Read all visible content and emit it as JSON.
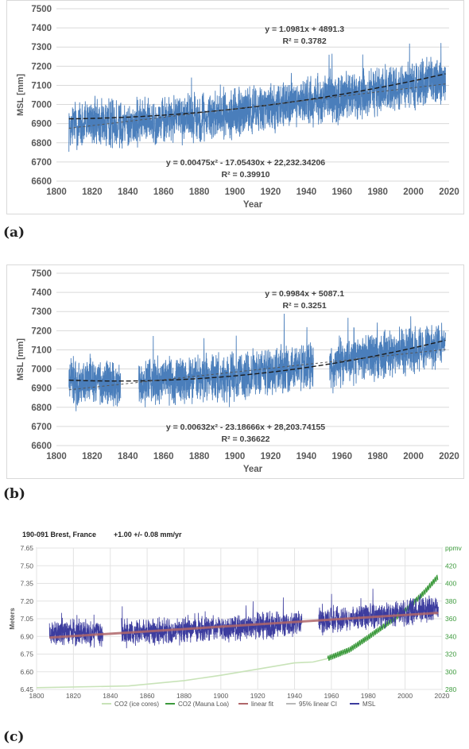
{
  "panels": {
    "a": {
      "label": "(a)"
    },
    "b": {
      "label": "(b)"
    },
    "c": {
      "label": "(c)"
    }
  },
  "colors": {
    "msl_blue": "#4a7ebb",
    "trend": "#1a1a1a",
    "c_msl": "#3c3c9e",
    "c_linear_fit": "#b0676a",
    "c_co2_mauna_loa": "#3c9a3c",
    "c_co2_ice": "#c8e3b8",
    "c_axis_right": "#3c9a3c"
  },
  "chart_data": [
    {
      "type": "line",
      "title": "",
      "xlabel": "Year",
      "ylabel": "MSL [mm]",
      "xlim": [
        1800,
        2020
      ],
      "ylim": [
        6600,
        7500
      ],
      "xticks": [
        "1800",
        "1820",
        "1840",
        "1860",
        "1880",
        "1900",
        "1920",
        "1940",
        "1960",
        "1980",
        "2000",
        "2020"
      ],
      "yticks": [
        "6600",
        "6700",
        "6800",
        "6900",
        "7000",
        "7100",
        "7200",
        "7300",
        "7400",
        "7500"
      ],
      "grid": true,
      "series_range": [
        1807,
        2018
      ],
      "gaps": [],
      "series": [
        {
          "kind": "observed",
          "x": [
            1807,
            1820,
            1840,
            1860,
            1880,
            1900,
            1920,
            1940,
            1960,
            1980,
            2000,
            2018
          ],
          "y": [
            6890,
            6905,
            6900,
            6920,
            6935,
            6955,
            6985,
            7015,
            7040,
            7070,
            7100,
            7130
          ]
        },
        {
          "kind": "quadratic_fit",
          "coefficients": [
            0.00475,
            -17.0543,
            22232.34206
          ]
        },
        {
          "kind": "linear_fit",
          "coefficients": [
            1.0981,
            4891.3
          ]
        }
      ],
      "annotations": {
        "linear_eq": "y = 1.0981x + 4891.3",
        "linear_r2": "R² = 0.3782",
        "quad_eq": "y = 0.00475x² - 17.05430x + 22,232.34206",
        "quad_r2": "R² = 0.39910"
      }
    },
    {
      "type": "line",
      "title": "",
      "xlabel": "Year",
      "ylabel": "MSL [mm]",
      "xlim": [
        1800,
        2020
      ],
      "ylim": [
        6600,
        7500
      ],
      "xticks": [
        "1800",
        "1820",
        "1840",
        "1860",
        "1880",
        "1900",
        "1920",
        "1940",
        "1960",
        "1980",
        "2000",
        "2020"
      ],
      "yticks": [
        "6600",
        "6700",
        "6800",
        "6900",
        "7000",
        "7100",
        "7200",
        "7300",
        "7400",
        "7500"
      ],
      "grid": true,
      "series_range": [
        1807,
        2018
      ],
      "gaps": [
        [
          1836,
          1846
        ],
        [
          1944,
          1953
        ]
      ],
      "series": [
        {
          "kind": "observed",
          "x": [
            1807,
            1820,
            1835,
            1850,
            1880,
            1900,
            1920,
            1940,
            1960,
            1980,
            2000,
            2018
          ],
          "y": [
            6930,
            6935,
            6920,
            6935,
            6945,
            6960,
            6990,
            7010,
            7040,
            7070,
            7100,
            7140
          ]
        },
        {
          "kind": "quadratic_fit",
          "coefficients": [
            0.00632,
            -23.18666,
            28203.74155
          ]
        },
        {
          "kind": "linear_fit",
          "coefficients": [
            0.9984,
            5087.1
          ]
        }
      ],
      "annotations": {
        "linear_eq": "y = 0.9984x + 5087.1",
        "linear_r2": "R² = 0.3251",
        "quad_eq": "y = 0.00632x² - 23.18666x + 28,203.74155",
        "quad_r2": "R² = 0.36622"
      }
    },
    {
      "type": "line",
      "title": "190-091 Brest, France",
      "rate": "+1.00 +/- 0.08 mm/yr",
      "xlabel": "",
      "ylabel": "Meters",
      "right_axis_unit": "ppmv",
      "xlim": [
        1800,
        2020
      ],
      "ylim": [
        6.45,
        7.65
      ],
      "y2lim": [
        280,
        440
      ],
      "xticks": [
        "1800",
        "1820",
        "1840",
        "1860",
        "1880",
        "1900",
        "1920",
        "1940",
        "1960",
        "1980",
        "2000",
        "2020"
      ],
      "yticks": [
        "6.45",
        "6.60",
        "6.75",
        "6.90",
        "7.05",
        "7.20",
        "7.35",
        "7.50",
        "7.65"
      ],
      "y2ticks": [
        "280",
        "300",
        "320",
        "340",
        "360",
        "380",
        "400",
        "420"
      ],
      "grid": true,
      "series_range": [
        1807,
        2018
      ],
      "gaps": [
        [
          1836,
          1846
        ],
        [
          1944,
          1953
        ]
      ],
      "legend_position": "bottom",
      "legend": [
        "CO2 (ice cores)",
        "CO2 (Mauna Loa)",
        "linear fit",
        "95% linear CI",
        "MSL"
      ],
      "series": [
        {
          "name": "MSL",
          "x": [
            1807,
            1820,
            1835,
            1850,
            1880,
            1900,
            1920,
            1940,
            1960,
            1980,
            2000,
            2018
          ],
          "y": [
            6.93,
            6.94,
            6.92,
            6.94,
            6.95,
            6.96,
            6.99,
            7.01,
            7.04,
            7.07,
            7.1,
            7.14
          ]
        },
        {
          "name": "linear fit",
          "x": [
            1807,
            2018
          ],
          "y": [
            6.89,
            7.1
          ]
        },
        {
          "name": "CO2 (ice cores)",
          "x": [
            1800,
            1850,
            1880,
            1900,
            1920,
            1940,
            1950,
            1958
          ],
          "y": [
            282,
            284,
            290,
            296,
            303,
            310,
            311,
            315
          ]
        },
        {
          "name": "CO2 (Mauna Loa)",
          "x": [
            1958,
            1970,
            1980,
            1990,
            2000,
            2010,
            2018
          ],
          "y": [
            315,
            325,
            339,
            354,
            369,
            389,
            408
          ]
        }
      ]
    }
  ]
}
